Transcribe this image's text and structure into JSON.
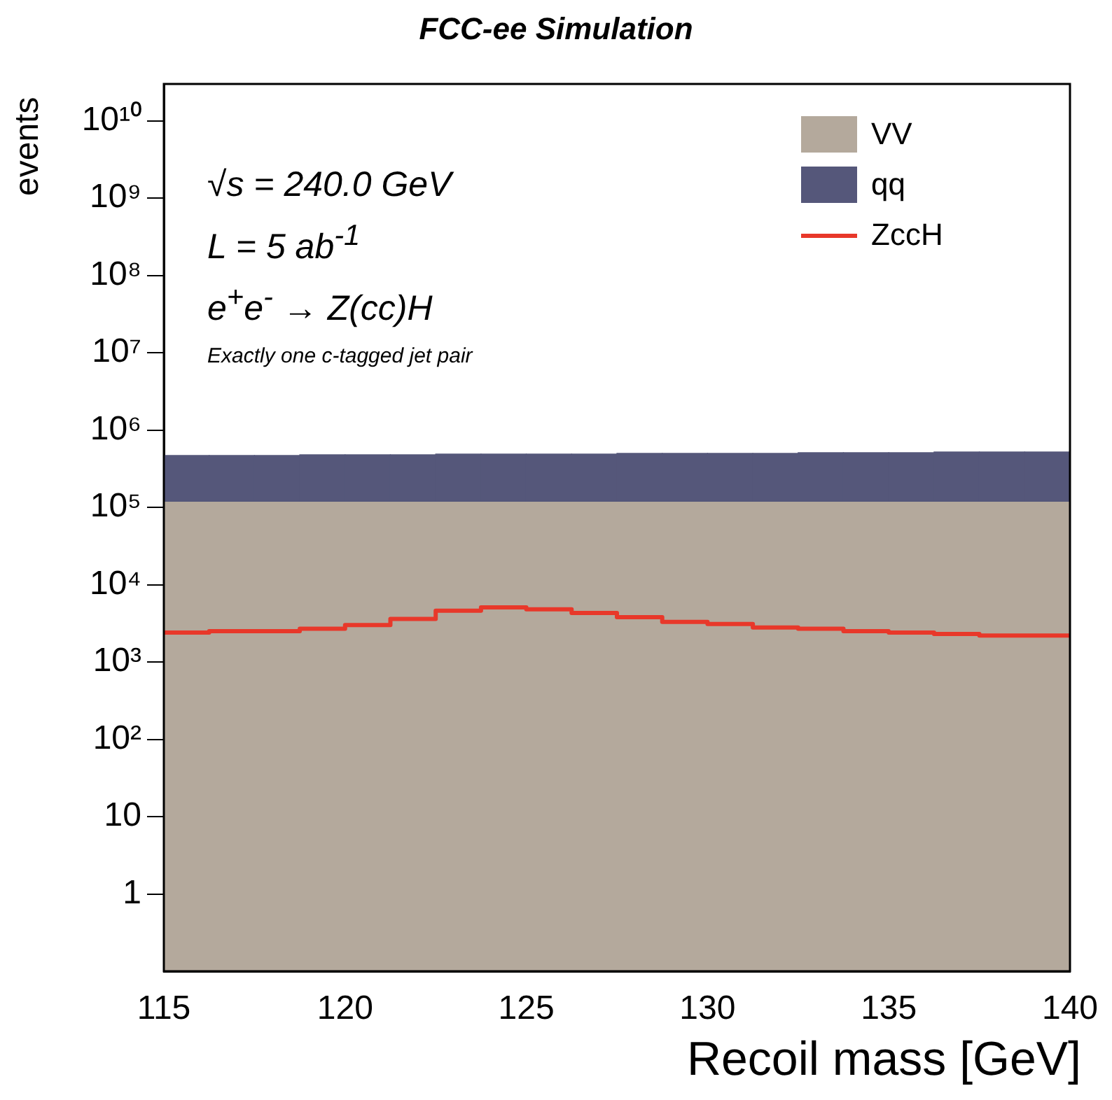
{
  "chart_data": {
    "type": "bar",
    "title": "FCC-ee Simulation",
    "xlabel": "Recoil mass [GeV]",
    "ylabel": "events",
    "annotations": [
      "√s = 240.0 GeV",
      "L = 5 ab$^{-1}$",
      "e$^{+}$e$^{-}$ → Z(cc)H",
      "Exactly one c-tagged jet pair"
    ],
    "x": [
      115.625,
      116.875,
      118.125,
      119.375,
      120.625,
      121.875,
      123.125,
      124.375,
      125.625,
      126.875,
      128.125,
      129.375,
      130.625,
      131.875,
      133.125,
      134.375,
      135.625,
      136.875,
      138.125,
      139.375
    ],
    "log": "y",
    "legend": "top right",
    "xlim": [
      115,
      140
    ],
    "xticks": [
      115,
      120,
      125,
      130,
      135,
      140
    ],
    "ylim": [
      0.1,
      30000000000
    ],
    "yticks": [
      1,
      10,
      {
        "value": 100,
        "label": "10²"
      },
      {
        "value": 1000,
        "label": "10³"
      },
      {
        "value": 10000,
        "label": "10⁴"
      },
      {
        "value": 100000,
        "label": "10⁵"
      },
      {
        "value": 1000000,
        "label": "10⁶"
      },
      {
        "value": 10000000,
        "label": "10⁷"
      },
      {
        "value": 100000000,
        "label": "10⁸"
      },
      {
        "value": 1000000000,
        "label": "10⁹"
      },
      {
        "value": 10000000000,
        "label": "10¹⁰"
      }
    ],
    "series": [
      {
        "name": "VV",
        "type": "area",
        "color": "#b4a99c",
        "x": [
          115,
          140
        ],
        "values": [
          120000,
          120000
        ]
      },
      {
        "name": "qq",
        "color": "#55577a",
        "base": [
          120000,
          120000,
          120000,
          120000,
          120000,
          120000,
          120000,
          120000,
          120000,
          120000,
          120000,
          120000,
          120000,
          120000,
          120000,
          120000,
          120000,
          120000,
          120000,
          120000
        ],
        "values": [
          350000,
          350000,
          350000,
          360000,
          360000,
          360000,
          370000,
          370000,
          370000,
          370000,
          380000,
          380000,
          380000,
          380000,
          390000,
          390000,
          390000,
          400000,
          400000,
          400000
        ]
      },
      {
        "name": "ZccH",
        "type": "step",
        "color": "#e8382a",
        "x": [
          115,
          116.25,
          117.5,
          118.75,
          120,
          121.25,
          122.5,
          123.75,
          125,
          126.25,
          127.5,
          128.75,
          130,
          131.25,
          132.5,
          133.75,
          135,
          136.25,
          137.5,
          138.75,
          140
        ],
        "values": [
          2500,
          2400,
          2500,
          2500,
          2700,
          3000,
          3600,
          4600,
          5100,
          4800,
          4300,
          3800,
          3300,
          3100,
          2800,
          2700,
          2500,
          2400,
          2300,
          2200,
          2200
        ]
      }
    ]
  }
}
